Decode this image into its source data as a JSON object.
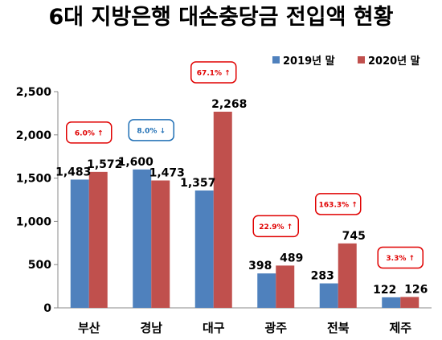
{
  "chart_data": {
    "type": "bar",
    "title": "6대 지방은행 대손충당금 전입액 현황",
    "categories": [
      "부산",
      "경남",
      "대구",
      "광주",
      "전북",
      "제주"
    ],
    "series": [
      {
        "name": "2019년 말",
        "color": "#4f81bd",
        "values": [
          1483,
          1600,
          1357,
          398,
          283,
          122
        ]
      },
      {
        "name": "2020년 말",
        "color": "#c0504d",
        "values": [
          1572,
          1473,
          2268,
          489,
          745,
          126
        ]
      }
    ],
    "value_labels": [
      [
        "1,483",
        "1,600",
        "1,357",
        "398",
        "283",
        "122"
      ],
      [
        "1,572",
        "1,473",
        "2,268",
        "489",
        "745",
        "126"
      ]
    ],
    "ylim": [
      0,
      2500
    ],
    "yticks": [
      0,
      500,
      1000,
      1500,
      2000,
      2500
    ],
    "ytick_labels": [
      "0",
      "500",
      "1,000",
      "1,500",
      "2,000",
      "2,500"
    ],
    "grid": false,
    "legend_position": "top-right",
    "annotations": [
      {
        "category": "부산",
        "text": "6.0% ↑",
        "color": "#e00000"
      },
      {
        "category": "경남",
        "text": "8.0% ↓",
        "color": "#1f6fb5"
      },
      {
        "category": "대구",
        "text": "67.1% ↑",
        "color": "#e00000"
      },
      {
        "category": "광주",
        "text": "22.9% ↑",
        "color": "#e00000"
      },
      {
        "category": "전북",
        "text": "163.3% ↑",
        "color": "#e00000"
      },
      {
        "category": "제주",
        "text": "3.3% ↑",
        "color": "#e00000"
      }
    ]
  }
}
